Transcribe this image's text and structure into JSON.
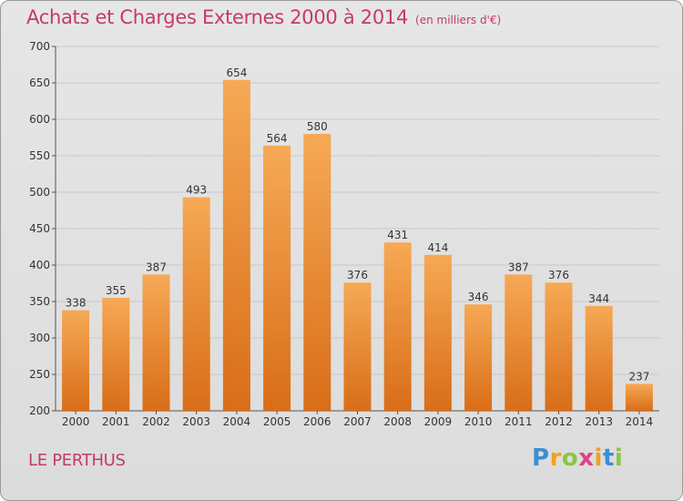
{
  "title": "Achats et Charges Externes 2000 à 2014",
  "unit": "(en milliers d'€)",
  "location": "LE PERTHUS",
  "logo": {
    "text": "Proxiti",
    "letters": [
      {
        "ch": "P",
        "color": "#3a8fd6"
      },
      {
        "ch": "r",
        "color": "#f2a01f"
      },
      {
        "ch": "o",
        "color": "#8cc63f"
      },
      {
        "ch": "x",
        "color": "#e0408a"
      },
      {
        "ch": "i",
        "color": "#f2a01f"
      },
      {
        "ch": "t",
        "color": "#3a8fd6"
      },
      {
        "ch": "i",
        "color": "#8cc63f"
      }
    ]
  },
  "colors": {
    "title": "#c43a6b",
    "bar_top": "#f6a955",
    "bar_bottom": "#d96d18",
    "grid": "#c8c8c8",
    "axis": "#555555"
  },
  "chart_data": {
    "type": "bar",
    "categories": [
      "2000",
      "2001",
      "2002",
      "2003",
      "2004",
      "2005",
      "2006",
      "2007",
      "2008",
      "2009",
      "2010",
      "2011",
      "2012",
      "2013",
      "2014"
    ],
    "values": [
      338,
      355,
      387,
      493,
      654,
      564,
      580,
      376,
      431,
      414,
      346,
      387,
      376,
      344,
      237
    ],
    "ylim": [
      200,
      700
    ],
    "yticks": [
      200,
      250,
      300,
      350,
      400,
      450,
      500,
      550,
      600,
      650,
      700
    ],
    "grid": true,
    "xlabel": "",
    "ylabel": ""
  }
}
